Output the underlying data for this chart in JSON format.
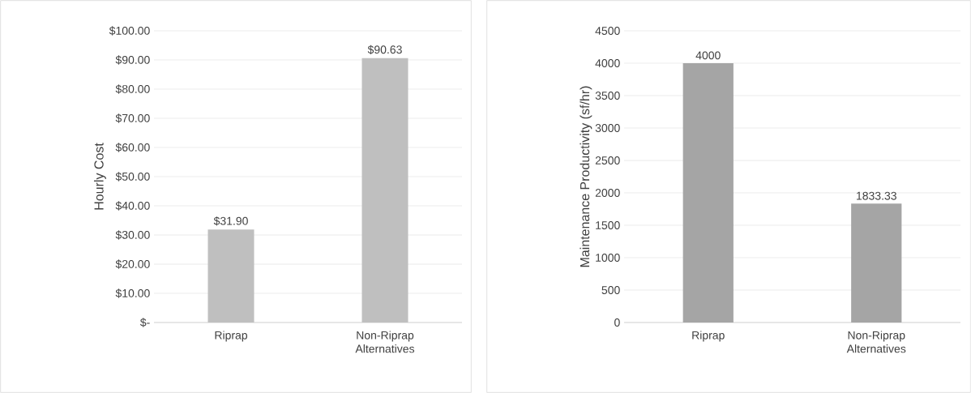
{
  "chart_data": [
    {
      "type": "bar",
      "ylabel": "Hourly Cost",
      "categories": [
        "Riprap",
        "Non-Riprap Alternatives"
      ],
      "values": [
        31.9,
        90.63
      ],
      "color": "#bfbfbf",
      "value_labels": [
        "$31.90",
        "$90.63"
      ],
      "ylim": [
        0,
        100
      ],
      "yticks": [
        {
          "value": 0,
          "label": "$-"
        },
        {
          "value": 10,
          "label": "$10.00"
        },
        {
          "value": 20,
          "label": "$20.00"
        },
        {
          "value": 30,
          "label": "$30.00"
        },
        {
          "value": 40,
          "label": "$40.00"
        },
        {
          "value": 50,
          "label": "$50.00"
        },
        {
          "value": 60,
          "label": "$60.00"
        },
        {
          "value": 70,
          "label": "$70.00"
        },
        {
          "value": 80,
          "label": "$80.00"
        },
        {
          "value": 90,
          "label": "$90.00"
        },
        {
          "value": 100,
          "label": "$100.00"
        }
      ],
      "grid": "y"
    },
    {
      "type": "bar",
      "ylabel": "Maintenance Productivity (sf/hr)",
      "categories": [
        "Riprap",
        "Non-Riprap Alternatives"
      ],
      "values": [
        4000,
        1833.33
      ],
      "color": "#a5a5a5",
      "data_labels": true,
      "ylim": [
        0,
        4500
      ],
      "yticks": [
        0,
        500,
        1000,
        1500,
        2000,
        2500,
        3000,
        3500,
        4000,
        4500
      ],
      "grid": "y"
    }
  ]
}
